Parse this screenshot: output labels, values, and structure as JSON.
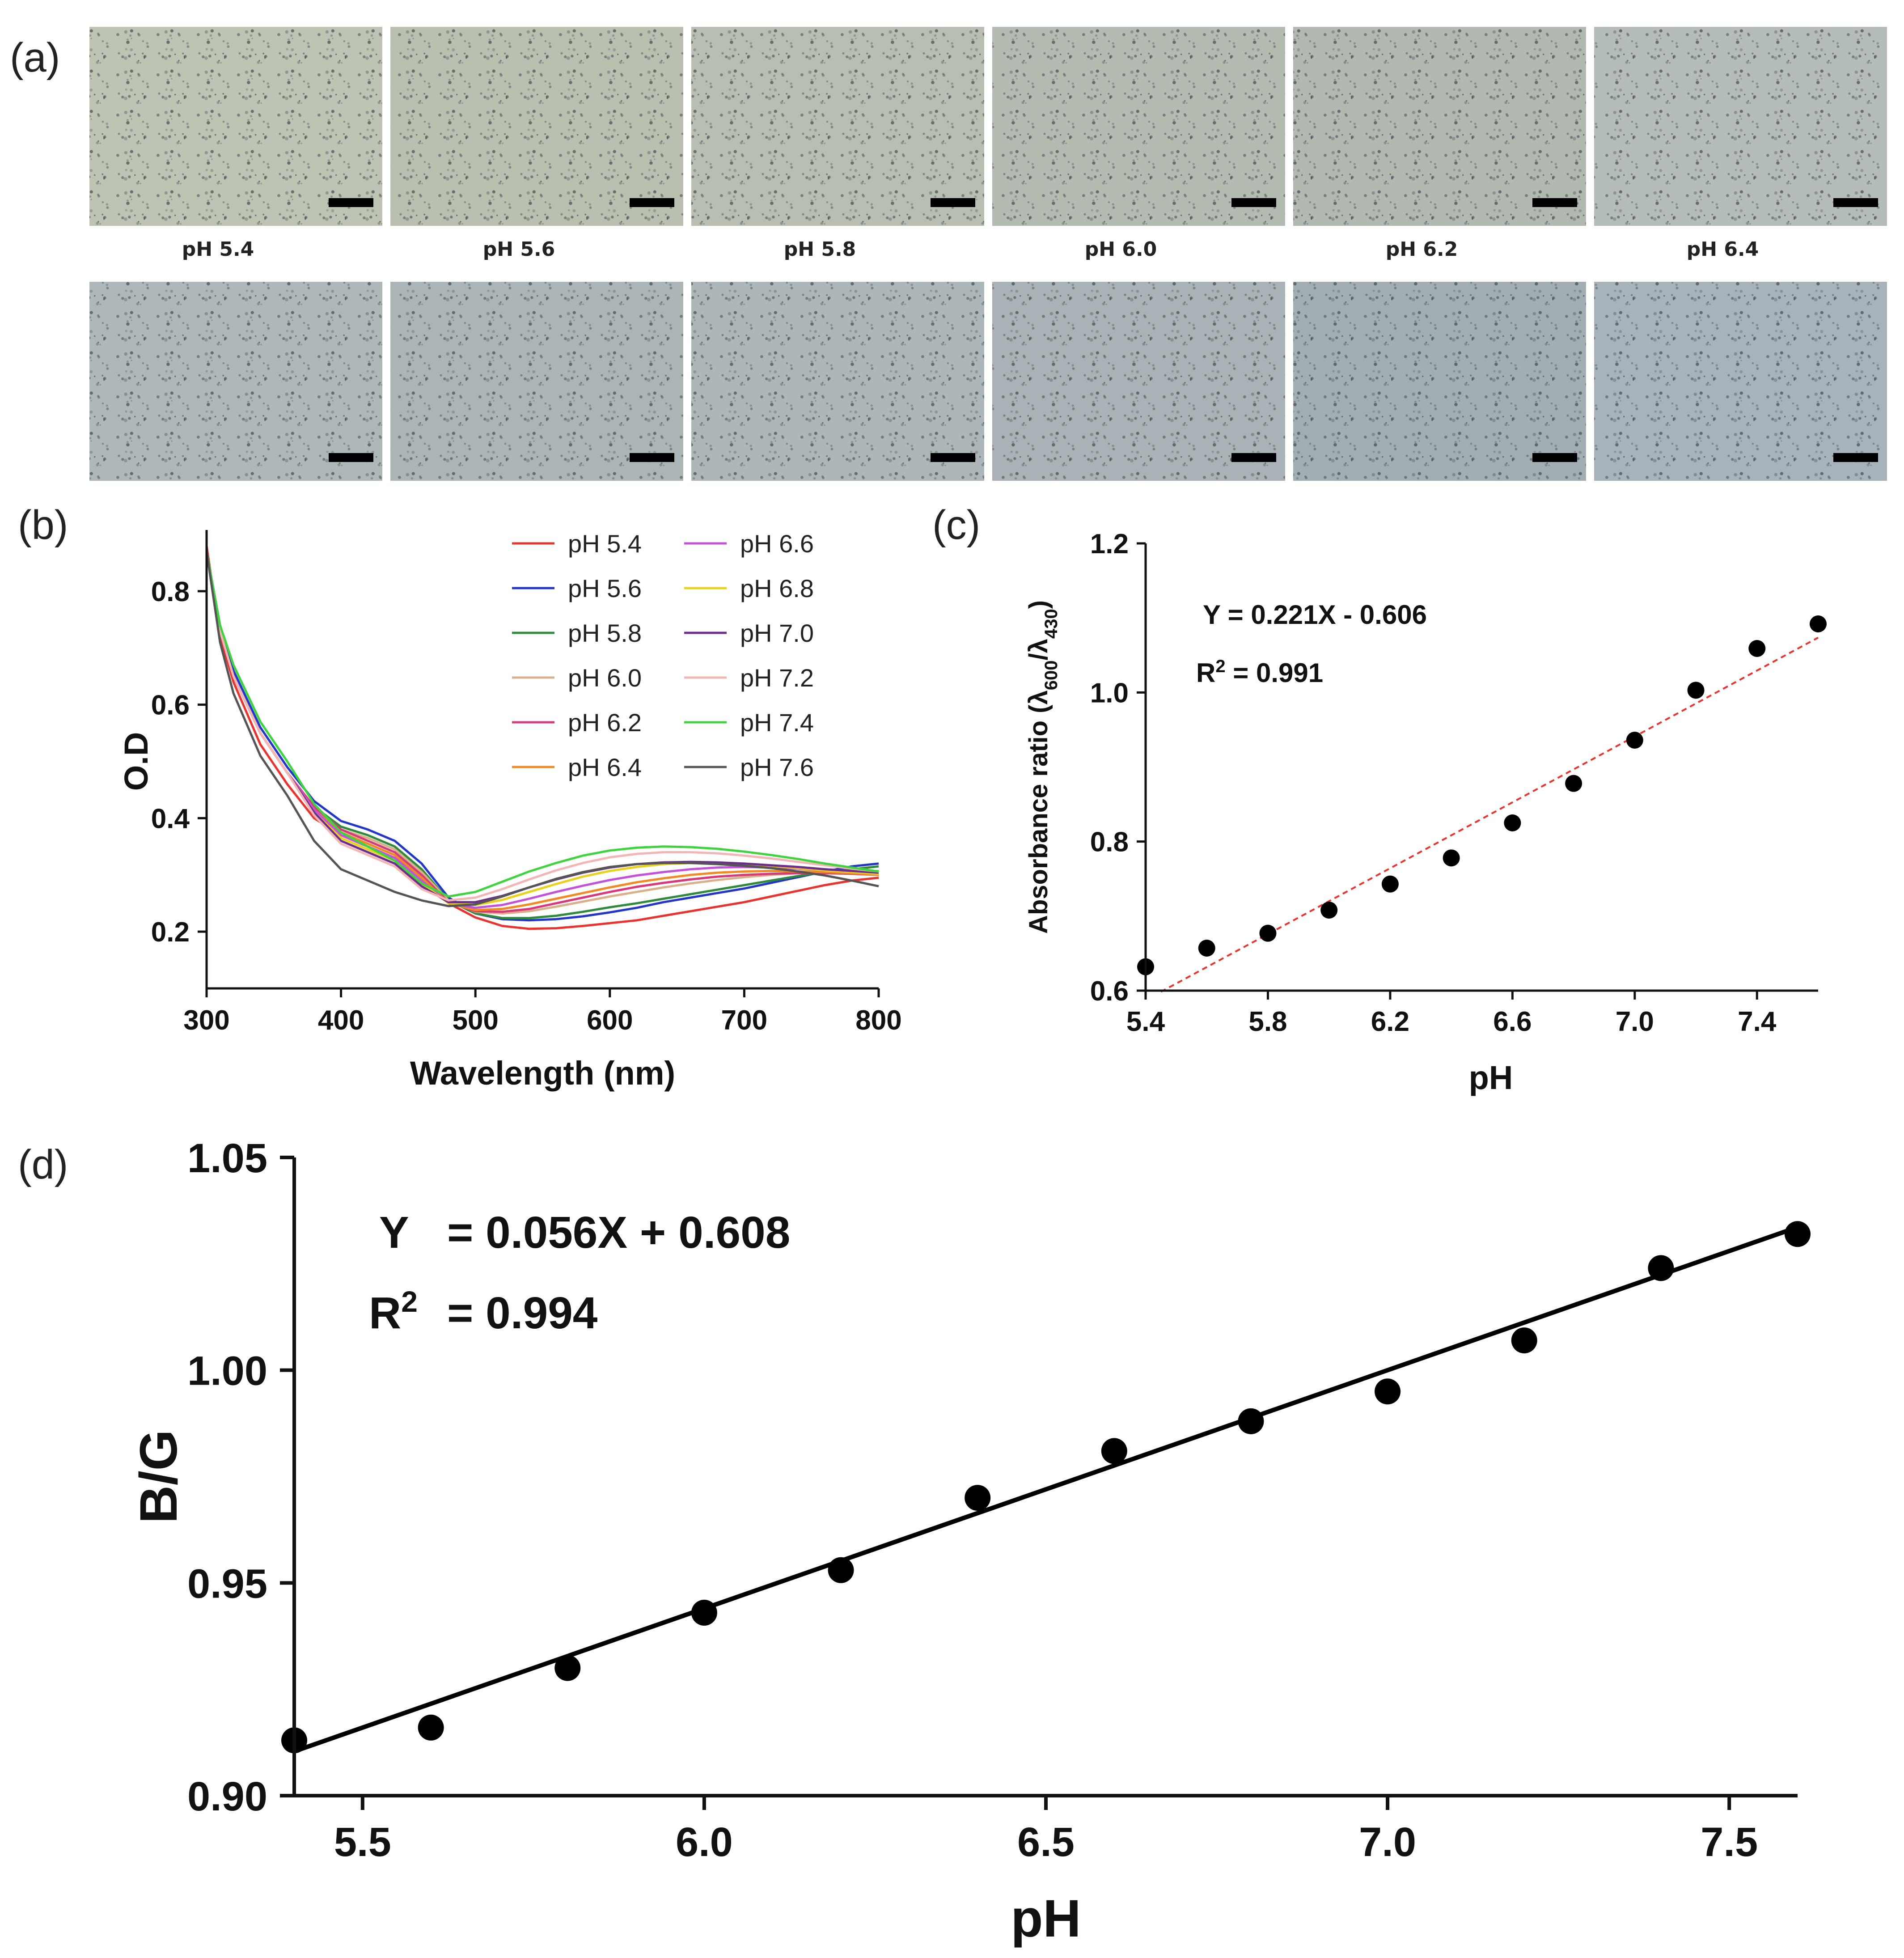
{
  "panels": {
    "a": {
      "tag": "(a)"
    },
    "b": {
      "tag": "(b)"
    },
    "c": {
      "tag": "(c)"
    },
    "d": {
      "tag": "(d)"
    }
  },
  "images": {
    "row1": [
      {
        "caption": "pH 5.4",
        "color": "#bdc4b3"
      },
      {
        "caption": "pH 5.6",
        "color": "#b9c0b0"
      },
      {
        "caption": "pH 5.8",
        "color": "#b8bfb2"
      },
      {
        "caption": "pH 6.0",
        "color": "#b4bcb2"
      },
      {
        "caption": "pH 6.2",
        "color": "#b1b9b1"
      },
      {
        "caption": "pH 6.4",
        "color": "#b4bdba"
      }
    ],
    "row2": [
      {
        "color": "#aeb7ba"
      },
      {
        "color": "#abb5b8"
      },
      {
        "color": "#adb6b9"
      },
      {
        "color": "#a8b2b7"
      },
      {
        "color": "#a3adb4"
      },
      {
        "color": "#a7b2ba"
      }
    ]
  },
  "chart_data": [
    {
      "id": "b",
      "type": "line",
      "xlabel": "Wavelength (nm)",
      "ylabel": "O.D",
      "xlim": [
        300,
        800
      ],
      "ylim": [
        0.1,
        0.9
      ],
      "xticks": [
        300,
        400,
        500,
        600,
        700,
        800
      ],
      "yticks": [
        0.2,
        0.4,
        0.6,
        0.8
      ],
      "x": [
        300,
        310,
        320,
        340,
        360,
        380,
        400,
        420,
        440,
        460,
        480,
        500,
        520,
        540,
        560,
        580,
        600,
        620,
        640,
        660,
        680,
        700,
        720,
        740,
        760,
        780,
        800
      ],
      "series": [
        {
          "name": "pH 5.4",
          "color": "#e8332e",
          "values": [
            0.88,
            0.72,
            0.64,
            0.53,
            0.46,
            0.4,
            0.37,
            0.35,
            0.33,
            0.3,
            0.25,
            0.225,
            0.21,
            0.205,
            0.206,
            0.21,
            0.215,
            0.22,
            0.228,
            0.236,
            0.244,
            0.252,
            0.262,
            0.272,
            0.282,
            0.29,
            0.295
          ]
        },
        {
          "name": "pH 5.6",
          "color": "#2436c8",
          "values": [
            0.87,
            0.74,
            0.66,
            0.56,
            0.49,
            0.43,
            0.395,
            0.38,
            0.36,
            0.32,
            0.26,
            0.232,
            0.222,
            0.22,
            0.222,
            0.227,
            0.234,
            0.242,
            0.252,
            0.26,
            0.268,
            0.276,
            0.286,
            0.296,
            0.306,
            0.315,
            0.32
          ]
        },
        {
          "name": "pH 5.8",
          "color": "#2e8b3e",
          "values": [
            0.87,
            0.73,
            0.65,
            0.55,
            0.48,
            0.42,
            0.385,
            0.37,
            0.35,
            0.31,
            0.255,
            0.232,
            0.224,
            0.224,
            0.228,
            0.235,
            0.243,
            0.25,
            0.258,
            0.266,
            0.274,
            0.282,
            0.29,
            0.298,
            0.305,
            0.31,
            0.315
          ]
        },
        {
          "name": "pH 6.0",
          "color": "#d9b089",
          "values": [
            0.87,
            0.73,
            0.65,
            0.55,
            0.48,
            0.42,
            0.38,
            0.365,
            0.345,
            0.305,
            0.255,
            0.235,
            0.232,
            0.236,
            0.244,
            0.253,
            0.262,
            0.27,
            0.278,
            0.285,
            0.291,
            0.296,
            0.3,
            0.303,
            0.305,
            0.306,
            0.307
          ]
        },
        {
          "name": "pH 6.2",
          "color": "#d63a7a",
          "values": [
            0.87,
            0.73,
            0.65,
            0.55,
            0.48,
            0.42,
            0.38,
            0.36,
            0.34,
            0.3,
            0.252,
            0.236,
            0.235,
            0.24,
            0.25,
            0.26,
            0.27,
            0.279,
            0.286,
            0.292,
            0.297,
            0.3,
            0.302,
            0.303,
            0.303,
            0.302,
            0.3
          ]
        },
        {
          "name": "pH 6.4",
          "color": "#f08a24",
          "values": [
            0.87,
            0.73,
            0.65,
            0.55,
            0.48,
            0.415,
            0.375,
            0.355,
            0.335,
            0.295,
            0.25,
            0.238,
            0.24,
            0.248,
            0.258,
            0.268,
            0.278,
            0.287,
            0.294,
            0.3,
            0.304,
            0.306,
            0.307,
            0.306,
            0.305,
            0.303,
            0.3
          ]
        },
        {
          "name": "pH 6.6",
          "color": "#c452d8",
          "values": [
            0.87,
            0.73,
            0.65,
            0.55,
            0.48,
            0.415,
            0.37,
            0.35,
            0.33,
            0.29,
            0.25,
            0.242,
            0.247,
            0.258,
            0.27,
            0.281,
            0.291,
            0.299,
            0.305,
            0.31,
            0.313,
            0.314,
            0.313,
            0.311,
            0.308,
            0.305,
            0.302
          ]
        },
        {
          "name": "pH 6.8",
          "color": "#ead21c",
          "values": [
            0.87,
            0.73,
            0.65,
            0.55,
            0.48,
            0.41,
            0.365,
            0.345,
            0.325,
            0.285,
            0.25,
            0.247,
            0.256,
            0.27,
            0.284,
            0.297,
            0.307,
            0.314,
            0.319,
            0.321,
            0.321,
            0.319,
            0.316,
            0.312,
            0.308,
            0.305,
            0.302
          ]
        },
        {
          "name": "pH 7.0",
          "color": "#6b2e8a",
          "values": [
            0.87,
            0.73,
            0.65,
            0.55,
            0.48,
            0.41,
            0.36,
            0.34,
            0.32,
            0.28,
            0.252,
            0.252,
            0.263,
            0.278,
            0.292,
            0.304,
            0.313,
            0.319,
            0.322,
            0.323,
            0.322,
            0.32,
            0.317,
            0.314,
            0.31,
            0.307,
            0.304
          ]
        },
        {
          "name": "pH 7.2",
          "color": "#f4b5b5",
          "values": [
            0.87,
            0.73,
            0.65,
            0.55,
            0.48,
            0.405,
            0.355,
            0.335,
            0.315,
            0.275,
            0.255,
            0.26,
            0.275,
            0.292,
            0.308,
            0.321,
            0.331,
            0.337,
            0.34,
            0.34,
            0.338,
            0.334,
            0.329,
            0.323,
            0.317,
            0.311,
            0.306
          ]
        },
        {
          "name": "pH 7.4",
          "color": "#3fd43f",
          "values": [
            0.87,
            0.74,
            0.67,
            0.57,
            0.5,
            0.425,
            0.375,
            0.35,
            0.325,
            0.285,
            0.262,
            0.27,
            0.288,
            0.306,
            0.321,
            0.334,
            0.343,
            0.348,
            0.35,
            0.349,
            0.346,
            0.341,
            0.335,
            0.328,
            0.32,
            0.313,
            0.306
          ]
        },
        {
          "name": "pH 7.6",
          "color": "#555555",
          "values": [
            0.87,
            0.71,
            0.62,
            0.51,
            0.44,
            0.36,
            0.31,
            0.29,
            0.27,
            0.255,
            0.245,
            0.248,
            0.262,
            0.278,
            0.293,
            0.305,
            0.314,
            0.319,
            0.321,
            0.321,
            0.319,
            0.316,
            0.312,
            0.306,
            0.299,
            0.29,
            0.28
          ]
        }
      ]
    },
    {
      "id": "c",
      "type": "scatter",
      "xlabel": "pH",
      "ylabel": "Absorbance ratio (λ600/λ430)",
      "ylabel_parts": {
        "main": "Absorbance ratio (λ",
        "sub1": "600",
        "mid": "/λ",
        "sub2": "430",
        "end": ")"
      },
      "xlim": [
        5.4,
        7.6
      ],
      "ylim": [
        0.6,
        1.2
      ],
      "xticks": [
        5.4,
        5.8,
        6.2,
        6.6,
        7.0,
        7.4
      ],
      "xtick_labels": [
        "5.4",
        "5.8",
        "6.2",
        "6.6",
        "7.0",
        "7.4"
      ],
      "yticks": [
        0.6,
        0.8,
        1.0,
        1.2
      ],
      "ytick_labels": [
        "0.6",
        "0.8",
        "1.0",
        "1.2"
      ],
      "x": [
        5.4,
        5.6,
        5.8,
        6.0,
        6.2,
        6.4,
        6.6,
        6.8,
        7.0,
        7.2,
        7.4,
        7.6
      ],
      "y": [
        0.632,
        0.657,
        0.677,
        0.708,
        0.743,
        0.778,
        0.825,
        0.878,
        0.936,
        1.003,
        1.059,
        1.092
      ],
      "fit": {
        "slope": 0.221,
        "intercept": -0.606,
        "color": "#e8332e",
        "style": "dashed"
      },
      "equation": "Y  = 0.221X - 0.606",
      "r2_label": "R",
      "r2_sup": "2",
      "r2_value": " = 0.991"
    },
    {
      "id": "d",
      "type": "scatter",
      "xlabel": "pH",
      "ylabel": "B/G",
      "xlim": [
        5.4,
        7.6
      ],
      "ylim": [
        0.9,
        1.05
      ],
      "xticks": [
        5.5,
        6.0,
        6.5,
        7.0,
        7.5
      ],
      "xtick_labels": [
        "5.5",
        "6.0",
        "6.5",
        "7.0",
        "7.5"
      ],
      "yticks": [
        0.9,
        0.95,
        1.0,
        1.05
      ],
      "ytick_labels": [
        "0.90",
        "0.95",
        "1.00",
        "1.05"
      ],
      "x": [
        5.4,
        5.6,
        5.8,
        6.0,
        6.2,
        6.4,
        6.6,
        6.8,
        7.0,
        7.2,
        7.4,
        7.6
      ],
      "y": [
        0.913,
        0.916,
        0.93,
        0.943,
        0.953,
        0.97,
        0.981,
        0.988,
        0.995,
        1.007,
        1.024,
        1.032
      ],
      "fit": {
        "slope": 0.056,
        "intercept": 0.608,
        "color": "#000000",
        "style": "solid"
      },
      "equation_y": "Y",
      "equation_rest": "= 0.056X + 0.608",
      "r2_label": "R",
      "r2_sup": "2",
      "r2_value": "= 0.994"
    }
  ]
}
